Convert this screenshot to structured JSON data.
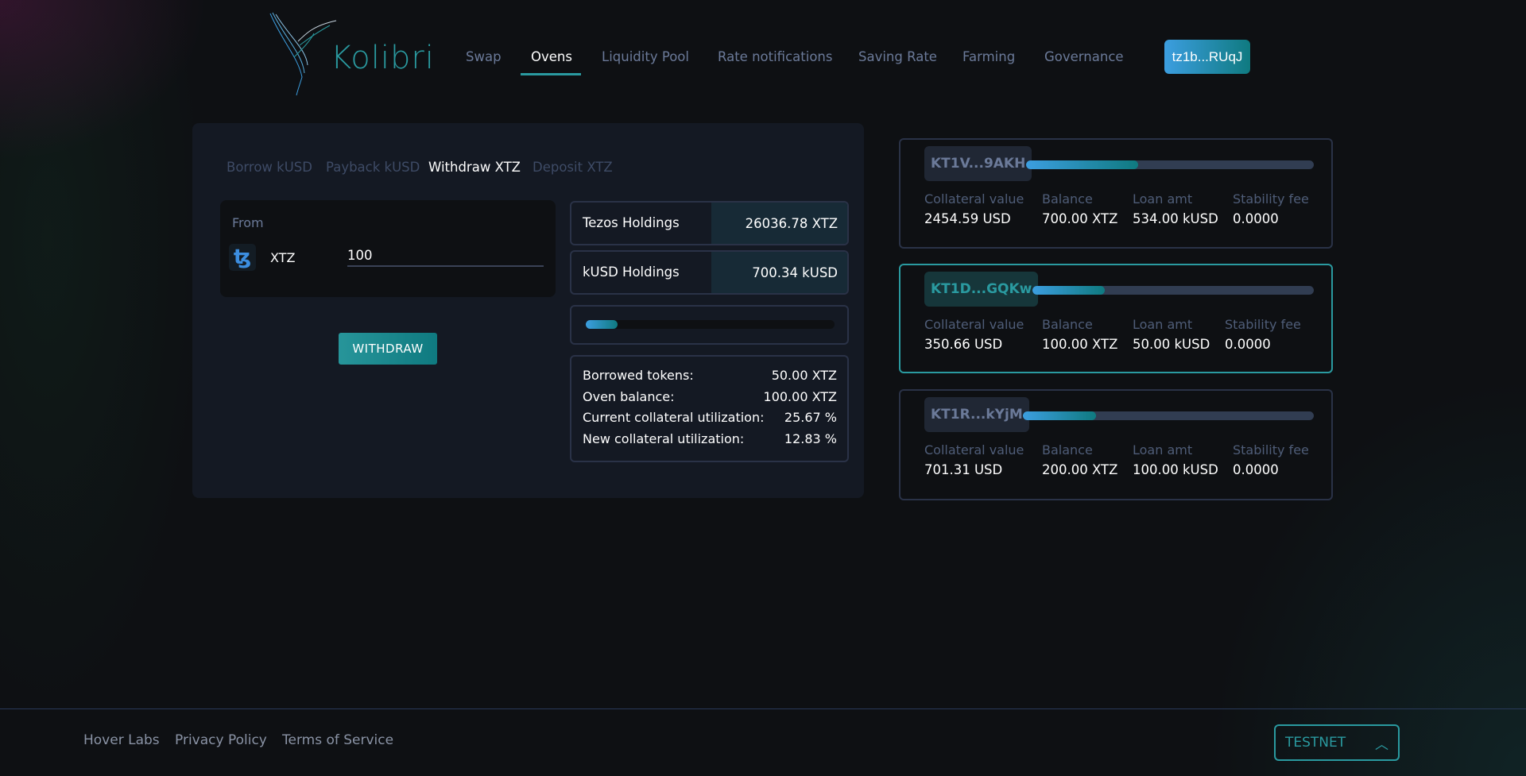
{
  "brand": {
    "name": "Kolibri"
  },
  "nav": {
    "items": [
      {
        "label": "Swap",
        "active": false
      },
      {
        "label": "Ovens",
        "active": true
      },
      {
        "label": "Liquidity Pool",
        "active": false
      },
      {
        "label": "Rate notifications",
        "active": false
      },
      {
        "label": "Saving Rate",
        "active": false
      },
      {
        "label": "Farming",
        "active": false
      },
      {
        "label": "Governance",
        "active": false
      }
    ],
    "wallet": "tz1b...RUqJ"
  },
  "panel": {
    "tabs": [
      {
        "label": "Borrow kUSD"
      },
      {
        "label": "Payback kUSD"
      },
      {
        "label": "Withdraw XTZ",
        "active": true
      },
      {
        "label": "Deposit XTZ"
      }
    ],
    "from_label": "From",
    "token_icon": "tezos-icon",
    "token": "XTZ",
    "amount": "100",
    "withdraw_label": "WITHDRAW",
    "holdings": [
      {
        "label": "Tezos Holdings",
        "value": "26036.78 XTZ"
      },
      {
        "label": "kUSD Holdings",
        "value": "700.34 kUSD"
      }
    ],
    "utilization_progress_percent": 12.83,
    "info": [
      {
        "label": "Borrowed tokens:",
        "value": "50.00 XTZ"
      },
      {
        "label": "Oven balance:",
        "value": "100.00 XTZ"
      },
      {
        "label": "Current collateral utilization:",
        "value": "25.67 %"
      },
      {
        "label": "New collateral utilization:",
        "value": "12.83 %"
      }
    ]
  },
  "ovens_headers": {
    "collateral": "Collateral value",
    "balance": "Balance",
    "loan": "Loan amt",
    "fee": "Stability fee"
  },
  "ovens": [
    {
      "id": "KT1V...9AKH",
      "progress_percent": 39,
      "collateral": "2454.59 USD",
      "balance": "700.00 XTZ",
      "loan": "534.00 kUSD",
      "fee": "0.0000",
      "selected": false
    },
    {
      "id": "KT1D...GQKw",
      "progress_percent": 25.67,
      "collateral": "350.66 USD",
      "balance": "100.00 XTZ",
      "loan": "50.00 kUSD",
      "fee": "0.0000",
      "selected": true
    },
    {
      "id": "KT1R...kYjM",
      "progress_percent": 25,
      "collateral": "701.31 USD",
      "balance": "200.00 XTZ",
      "loan": "100.00 kUSD",
      "fee": "0.0000",
      "selected": false
    }
  ],
  "footer": {
    "links": [
      "Hover Labs",
      "Privacy Policy",
      "Terms of Service"
    ],
    "network": "TESTNET",
    "network_icon": "chevron-up-icon"
  },
  "colors": {
    "accent": "#2a9aa0",
    "gradient_start": "#3c9ee0",
    "gradient_end": "#0f7a80"
  }
}
